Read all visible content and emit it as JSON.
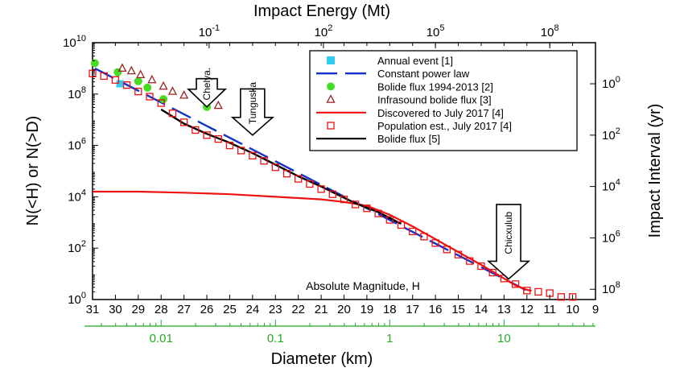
{
  "chart_data": {
    "type": "scatter",
    "title": "Impact Energy (Mt)",
    "xlabel": "Diameter (km)",
    "xlabel_inner": "Absolute Magnitude, H",
    "ylabel_left": "N(<H)  or  N(>D)",
    "ylabel_right": "Impact Interval (yr)",
    "x_magnitude_range": [
      31,
      9
    ],
    "ylim_log10": [
      0,
      10
    ],
    "grid": false,
    "legend_position": "top-right",
    "colors": {
      "annual": "#33ccee",
      "power_law": "#1133cc",
      "bolide_green": "#44dd22",
      "infrasound": "#992222",
      "discovered": "#ee1111",
      "population": "#ee1111",
      "bolide_black": "#000000",
      "diameter_axis": "#22aa22"
    },
    "axes": {
      "bottom_ticks": [
        "31",
        "30",
        "29",
        "28",
        "27",
        "26",
        "25",
        "24",
        "23",
        "22",
        "21",
        "20",
        "19",
        "18",
        "17",
        "16",
        "15",
        "14",
        "13",
        "12",
        "11",
        "10",
        "9"
      ],
      "left_ticks": [
        {
          "base": "10",
          "exp": "0",
          "log": 0
        },
        {
          "base": "10",
          "exp": "2",
          "log": 2
        },
        {
          "base": "10",
          "exp": "4",
          "log": 4
        },
        {
          "base": "10",
          "exp": "6",
          "log": 6
        },
        {
          "base": "10",
          "exp": "8",
          "log": 8
        },
        {
          "base": "10",
          "exp": "10",
          "log": 10
        }
      ],
      "top_ticks": [
        {
          "base": "10",
          "exp": "-1",
          "H": 25.9
        },
        {
          "base": "10",
          "exp": "2",
          "H": 20.9
        },
        {
          "base": "10",
          "exp": "5",
          "H": 16.0
        },
        {
          "base": "10",
          "exp": "8",
          "H": 11.0
        }
      ],
      "right_ticks": [
        {
          "base": "10",
          "exp": "0",
          "log": 8.4
        },
        {
          "base": "10",
          "exp": "2",
          "log": 6.4
        },
        {
          "base": "10",
          "exp": "4",
          "log": 4.4
        },
        {
          "base": "10",
          "exp": "6",
          "log": 2.4
        },
        {
          "base": "10",
          "exp": "8",
          "log": 0.4
        }
      ],
      "diameter_ticks": [
        {
          "label": "0.01",
          "H": 28.0
        },
        {
          "label": "0.1",
          "H": 23.0
        },
        {
          "label": "1",
          "H": 18.0
        },
        {
          "label": "10",
          "H": 13.0
        }
      ]
    },
    "series": [
      {
        "name": "Annual event [1]",
        "kind": "square",
        "points": [
          [
            29.8,
            8.4
          ]
        ]
      },
      {
        "name": "Constant power law",
        "kind": "dashed",
        "points": [
          [
            30.9,
            9.0
          ],
          [
            11.9,
            0.3
          ]
        ]
      },
      {
        "name": "Bolide flux 1994-2013 [2]",
        "kind": "circle",
        "points": [
          [
            30.9,
            9.2
          ],
          [
            29.9,
            8.85
          ],
          [
            29.0,
            8.5
          ],
          [
            28.6,
            8.25
          ],
          [
            27.9,
            7.8
          ],
          [
            26.0,
            7.5
          ]
        ]
      },
      {
        "name": "Infrasound bolide flux [3]",
        "kind": "triangle",
        "points": [
          [
            29.7,
            9.0
          ],
          [
            29.3,
            8.9
          ],
          [
            28.9,
            8.75
          ],
          [
            28.4,
            8.55
          ],
          [
            27.9,
            8.3
          ],
          [
            27.5,
            8.1
          ],
          [
            27.0,
            7.95
          ],
          [
            25.5,
            7.55
          ]
        ]
      },
      {
        "name": "Discovered to July 2017 [4]",
        "kind": "solid",
        "points": [
          [
            31,
            4.2
          ],
          [
            29,
            4.2
          ],
          [
            27,
            4.16
          ],
          [
            25,
            4.1
          ],
          [
            23,
            4.0
          ],
          [
            21,
            3.9
          ],
          [
            20,
            3.8
          ],
          [
            19,
            3.65
          ],
          [
            18,
            3.3
          ],
          [
            17,
            2.85
          ],
          [
            16,
            2.35
          ],
          [
            15,
            1.85
          ],
          [
            14,
            1.35
          ],
          [
            13,
            0.82
          ],
          [
            12.5,
            0.55
          ],
          [
            12,
            0.38
          ],
          [
            11.8,
            0.34
          ]
        ]
      },
      {
        "name": "Population est., July 2017 [4]",
        "kind": "open-square",
        "points": [
          [
            31,
            8.8
          ],
          [
            30.5,
            8.7
          ],
          [
            30,
            8.55
          ],
          [
            29.5,
            8.35
          ],
          [
            29,
            8.1
          ],
          [
            28.5,
            7.9
          ],
          [
            28,
            7.65
          ],
          [
            27.5,
            7.25
          ],
          [
            27,
            6.9
          ],
          [
            26.5,
            6.6
          ],
          [
            26,
            6.4
          ],
          [
            25.5,
            6.25
          ],
          [
            25,
            6.0
          ],
          [
            24.5,
            5.8
          ],
          [
            24,
            5.6
          ],
          [
            23.5,
            5.4
          ],
          [
            23,
            5.15
          ],
          [
            22.5,
            4.9
          ],
          [
            22,
            4.7
          ],
          [
            21.5,
            4.5
          ],
          [
            21,
            4.3
          ],
          [
            20.5,
            4.1
          ],
          [
            20,
            3.9
          ],
          [
            19.5,
            3.7
          ],
          [
            19,
            3.55
          ],
          [
            18.5,
            3.35
          ],
          [
            18,
            3.1
          ],
          [
            17.5,
            2.9
          ],
          [
            17,
            2.65
          ],
          [
            16.5,
            2.45
          ],
          [
            16,
            2.2
          ],
          [
            15.5,
            1.95
          ],
          [
            15,
            1.75
          ],
          [
            14.5,
            1.5
          ],
          [
            14,
            1.3
          ],
          [
            13.5,
            1.05
          ],
          [
            13,
            0.82
          ],
          [
            12.5,
            0.6
          ],
          [
            12,
            0.35
          ],
          [
            11.5,
            0.3
          ],
          [
            11,
            0.25
          ],
          [
            10.5,
            0.1
          ],
          [
            10,
            0.1
          ]
        ]
      },
      {
        "name": "Bolide flux [5]",
        "kind": "solid",
        "points": [
          [
            28,
            7.4
          ],
          [
            27,
            6.85
          ],
          [
            26,
            6.45
          ],
          [
            25,
            6.1
          ],
          [
            24,
            5.7
          ],
          [
            23,
            5.25
          ],
          [
            22,
            4.8
          ],
          [
            21,
            4.4
          ],
          [
            20.2,
            4.05
          ],
          [
            19.5,
            3.75
          ],
          [
            18.5,
            3.4
          ],
          [
            17.5,
            2.95
          ]
        ]
      }
    ],
    "annotations": [
      {
        "label": "Chelya.",
        "H": 26.0,
        "y_from": 8.6,
        "y_to": 7.5
      },
      {
        "label": "Tunguska",
        "H": 24.0,
        "y_from": 8.2,
        "y_to": 6.4
      },
      {
        "label": "Chicxulub",
        "H": 12.8,
        "y_from": 3.7,
        "y_to": 0.8
      }
    ]
  }
}
